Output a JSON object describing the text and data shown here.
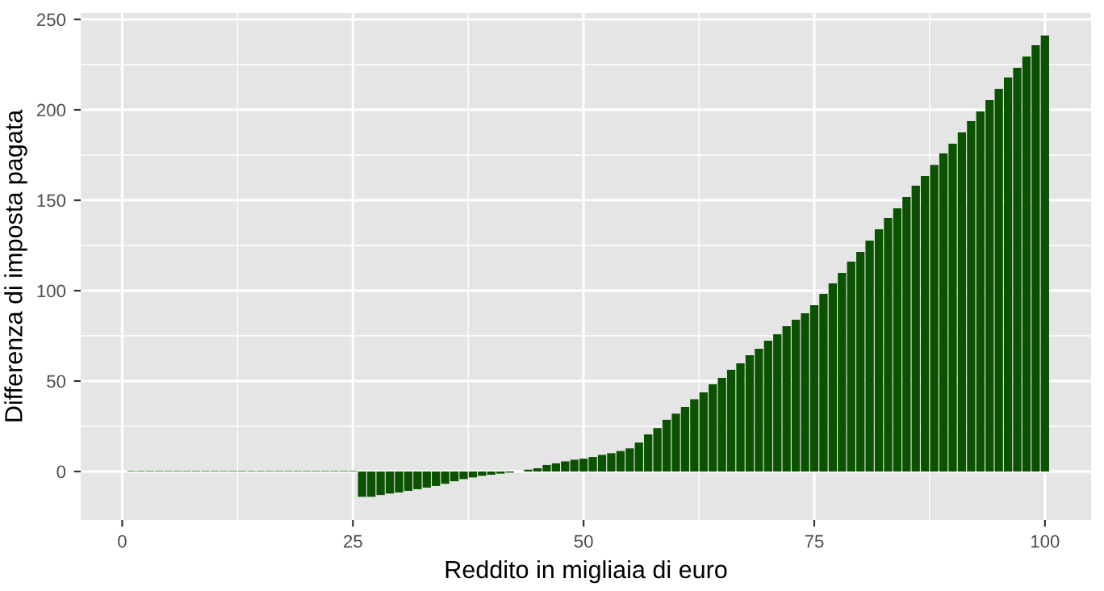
{
  "chart_data": {
    "type": "bar",
    "xlabel": "Reddito in migliaia di euro",
    "ylabel": "Differenza di imposta pagata",
    "x": [
      1,
      2,
      3,
      4,
      5,
      6,
      7,
      8,
      9,
      10,
      11,
      12,
      13,
      14,
      15,
      16,
      17,
      18,
      19,
      20,
      21,
      22,
      23,
      24,
      25,
      26,
      27,
      28,
      29,
      30,
      31,
      32,
      33,
      34,
      35,
      36,
      37,
      38,
      39,
      40,
      41,
      42,
      43,
      44,
      45,
      46,
      47,
      48,
      49,
      50,
      51,
      52,
      53,
      54,
      55,
      56,
      57,
      58,
      59,
      60,
      61,
      62,
      63,
      64,
      65,
      66,
      67,
      68,
      69,
      70,
      71,
      72,
      73,
      74,
      75,
      76,
      77,
      78,
      79,
      80,
      81,
      82,
      83,
      84,
      85,
      86,
      87,
      88,
      89,
      90,
      91,
      92,
      93,
      94,
      95,
      96,
      97,
      98,
      99,
      100
    ],
    "values": [
      0.3,
      0.3,
      0.3,
      0.3,
      0.3,
      0.3,
      0.3,
      0.3,
      0.3,
      0.3,
      0.3,
      0.3,
      0.3,
      0.3,
      0.3,
      0.3,
      0.3,
      0.3,
      0.3,
      0.3,
      0.3,
      0.3,
      0.3,
      0.3,
      0.3,
      -14,
      -14,
      -13,
      -12.2,
      -11.6,
      -10.7,
      -9.8,
      -8.9,
      -8,
      -6.8,
      -5.4,
      -4.2,
      -3.3,
      -2.4,
      -1.8,
      -1.2,
      -0.6,
      null,
      1,
      1.8,
      3.6,
      4.5,
      5.6,
      6.5,
      7.1,
      8,
      9.2,
      10.1,
      11.3,
      12.8,
      16,
      20.5,
      24,
      28.6,
      32,
      35.7,
      40,
      43.8,
      48.2,
      51.8,
      56.3,
      59.8,
      64.3,
      67.9,
      72.3,
      75.9,
      80.4,
      83.9,
      87.5,
      92,
      98.2,
      104,
      109.8,
      116.1,
      121.4,
      127.7,
      133.9,
      140.2,
      145.5,
      151.8,
      158,
      163.4,
      169.6,
      175.9,
      181.3,
      187.5,
      193.8,
      199.1,
      205.4,
      211.6,
      217.9,
      223.2,
      229.5,
      235.7,
      241.1
    ],
    "color": "#0b5200",
    "xlim": [
      -4.5,
      105
    ],
    "ylim": [
      -26.8,
      253.6
    ],
    "xticks": [
      0,
      25,
      50,
      75,
      100
    ],
    "yticks": [
      0,
      50,
      100,
      150,
      200,
      250
    ],
    "grid": true
  }
}
